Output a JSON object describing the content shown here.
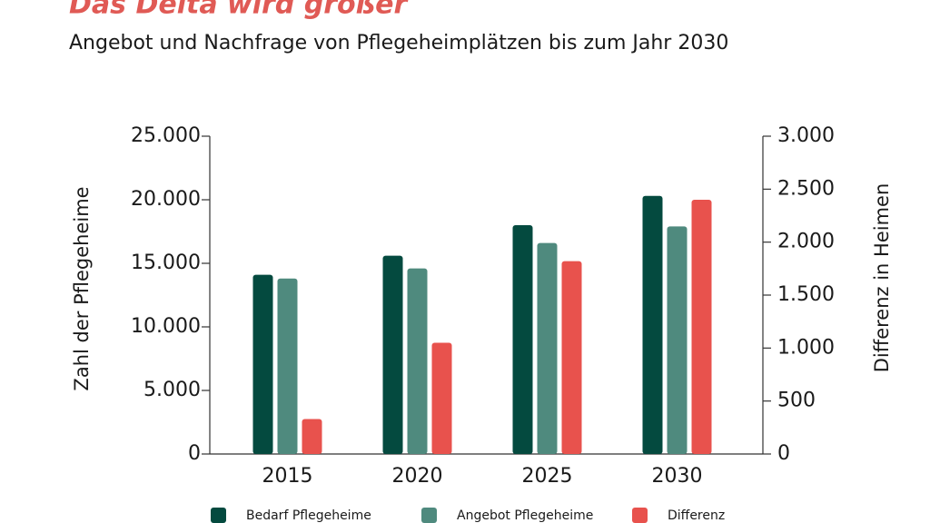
{
  "chart_data": {
    "type": "bar",
    "title": "Das Delta wird größer",
    "subtitle": "Angebot und Nachfrage von Pflegeheimplätzen bis zum Jahr 2030",
    "ylabel": "Zahl der Pflegeheime",
    "y2label": "Differenz in Heimen",
    "categories": [
      "2015",
      "2020",
      "2025",
      "2030"
    ],
    "series": [
      {
        "name": "Bedarf Pflegeheime",
        "color": "#044a3f",
        "values": [
          14100,
          15600,
          18000,
          20300
        ]
      },
      {
        "name": "Angebot Pflegeheime",
        "color": "#4f8a7e",
        "values": [
          13800,
          14600,
          16600,
          17900
        ]
      },
      {
        "name": "Differenz",
        "color": "#e8524d",
        "axis": "y2",
        "values": [
          330,
          1050,
          1820,
          2400
        ]
      }
    ],
    "ylim": [
      0,
      25000
    ],
    "yticks": [
      0,
      {
        "value": 5000,
        "label": "5.000"
      },
      {
        "value": 10000,
        "label": "10.000"
      },
      {
        "value": 15000,
        "label": "15.000"
      },
      {
        "value": 20000,
        "label": "20.000"
      },
      {
        "value": 25000,
        "label": "25.000"
      }
    ],
    "y2lim": [
      0,
      3000
    ],
    "y2ticks": [
      0,
      500,
      {
        "value": 1000,
        "label": "1.000"
      },
      {
        "value": 1500,
        "label": "1.500"
      },
      {
        "value": 2000,
        "label": "2.000"
      },
      {
        "value": 2500,
        "label": "2.500"
      },
      {
        "value": 3000,
        "label": "3.000"
      }
    ],
    "legend": "bottom"
  }
}
